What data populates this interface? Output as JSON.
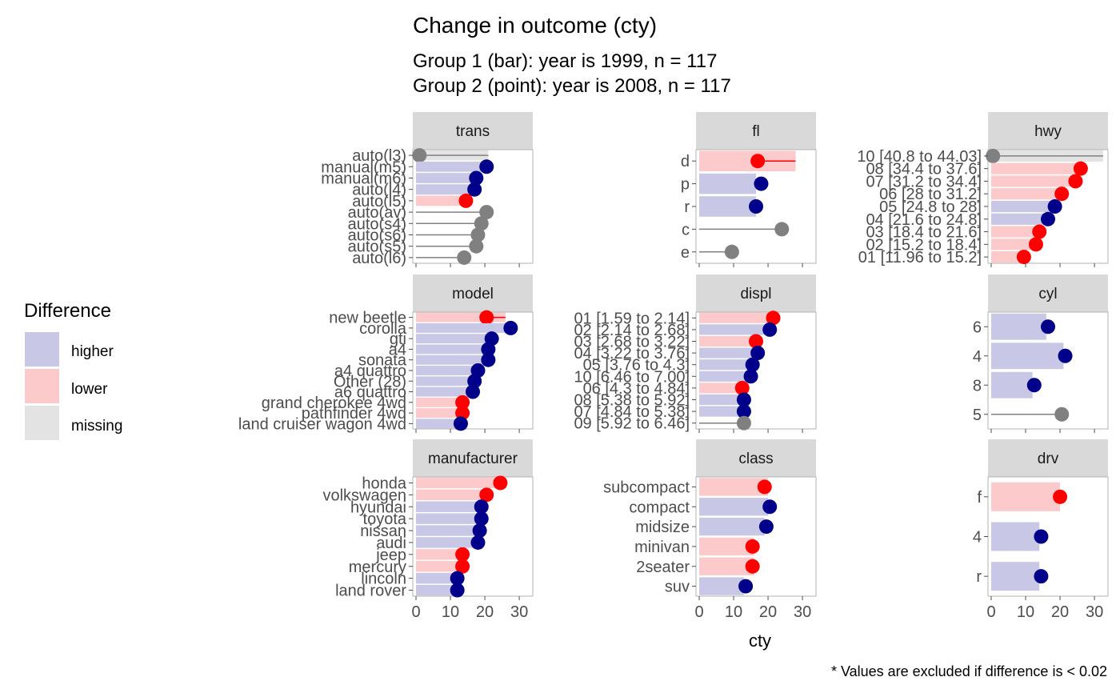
{
  "chart_data": {
    "type": "bar",
    "title": "Change in outcome (cty)",
    "subtitle_lines": [
      "Group 1 (bar): year is 1999, n = 117",
      "Group 2 (point): year is 2008, n = 117"
    ],
    "xlabel": "cty",
    "xlim": [
      0,
      33
    ],
    "xticks": [
      0,
      10,
      20,
      30
    ],
    "caption": "* Values are excluded if difference is < 0.02",
    "colors": {
      "higher": "#00008B",
      "lower": "#FF0000",
      "missing": "#808080",
      "bar_higher": "#c8c8e6",
      "bar_lower": "#fccacb",
      "bar_missing": "#e3e3e3"
    },
    "legend": {
      "title": "Difference",
      "entries": [
        {
          "key": "higher",
          "label": "higher"
        },
        {
          "key": "lower",
          "label": "lower"
        },
        {
          "key": "missing",
          "label": "missing"
        }
      ]
    },
    "panels": [
      {
        "name": "trans",
        "rows": [
          {
            "label": "auto(l3)",
            "bar": 21,
            "point": 1,
            "diff": "missing"
          },
          {
            "label": "manual(m5)",
            "bar": 19.5,
            "point": 20.5,
            "diff": "higher"
          },
          {
            "label": "manual(m6)",
            "bar": 16.5,
            "point": 17.5,
            "diff": "higher"
          },
          {
            "label": "auto(l4)",
            "bar": 16,
            "point": 17,
            "diff": "higher"
          },
          {
            "label": "auto(l5)",
            "bar": 15,
            "point": 14.5,
            "diff": "lower"
          },
          {
            "label": "auto(av)",
            "bar": 0,
            "point": 20.5,
            "diff": "missing"
          },
          {
            "label": "auto(s4)",
            "bar": 0,
            "point": 19,
            "diff": "missing"
          },
          {
            "label": "auto(s6)",
            "bar": 0,
            "point": 18,
            "diff": "missing"
          },
          {
            "label": "auto(s5)",
            "bar": 0,
            "point": 17.5,
            "diff": "missing"
          },
          {
            "label": "auto(l6)",
            "bar": 0,
            "point": 14,
            "diff": "missing"
          }
        ]
      },
      {
        "name": "fl",
        "rows": [
          {
            "label": "d",
            "bar": 28,
            "point": 17,
            "diff": "lower"
          },
          {
            "label": "p",
            "bar": 16.5,
            "point": 18,
            "diff": "higher"
          },
          {
            "label": "r",
            "bar": 16.5,
            "point": 16.5,
            "diff": "higher"
          },
          {
            "label": "c",
            "bar": 0,
            "point": 24,
            "diff": "missing"
          },
          {
            "label": "e",
            "bar": 0,
            "point": 9.5,
            "diff": "missing"
          }
        ]
      },
      {
        "name": "hwy",
        "rows": [
          {
            "label": "10 [40.8 to 44.03]",
            "bar": 32.5,
            "point": 0.5,
            "diff": "missing"
          },
          {
            "label": "08 [34.4 to 37.6]",
            "bar": 27,
            "point": 26,
            "diff": "lower"
          },
          {
            "label": "07 [31.2 to 34.4]",
            "bar": 25,
            "point": 24.5,
            "diff": "lower"
          },
          {
            "label": "06 [28 to 31.2]",
            "bar": 21,
            "point": 20.5,
            "diff": "lower"
          },
          {
            "label": "05 [24.8 to 28]",
            "bar": 18,
            "point": 18.5,
            "diff": "higher"
          },
          {
            "label": "04 [21.6 to 24.8]",
            "bar": 16.5,
            "point": 16.5,
            "diff": "higher"
          },
          {
            "label": "03 [18.4 to 21.6]",
            "bar": 14.5,
            "point": 14,
            "diff": "lower"
          },
          {
            "label": "02 [15.2 to 18.4]",
            "bar": 13,
            "point": 13,
            "diff": "lower"
          },
          {
            "label": "01 [11.96 to 15.2]",
            "bar": 10,
            "point": 9.5,
            "diff": "lower"
          }
        ]
      },
      {
        "name": "model",
        "rows": [
          {
            "label": "new beetle",
            "bar": 26,
            "point": 20.5,
            "diff": "lower"
          },
          {
            "label": "corolla",
            "bar": 26.5,
            "point": 27.5,
            "diff": "higher"
          },
          {
            "label": "gti",
            "bar": 21,
            "point": 22,
            "diff": "higher"
          },
          {
            "label": "a4",
            "bar": 20,
            "point": 21,
            "diff": "higher"
          },
          {
            "label": "sonata",
            "bar": 20,
            "point": 21,
            "diff": "higher"
          },
          {
            "label": "a4 quattro",
            "bar": 17,
            "point": 18,
            "diff": "higher"
          },
          {
            "label": "Other (28)",
            "bar": 16,
            "point": 17,
            "diff": "higher"
          },
          {
            "label": "a6 quattro",
            "bar": 15.5,
            "point": 16.5,
            "diff": "higher"
          },
          {
            "label": "grand cherokee 4wd",
            "bar": 14,
            "point": 13.5,
            "diff": "lower"
          },
          {
            "label": "pathfinder 4wd",
            "bar": 14,
            "point": 13.5,
            "diff": "lower"
          },
          {
            "label": "land cruiser wagon 4wd",
            "bar": 12,
            "point": 13,
            "diff": "higher"
          }
        ]
      },
      {
        "name": "displ",
        "rows": [
          {
            "label": "01 [1.59 to 2.14]",
            "bar": 22.5,
            "point": 21.5,
            "diff": "lower"
          },
          {
            "label": "02 [2.14 to 2.68]",
            "bar": 20,
            "point": 20.5,
            "diff": "higher"
          },
          {
            "label": "03 [2.68 to 3.22]",
            "bar": 17,
            "point": 16.5,
            "diff": "lower"
          },
          {
            "label": "04 [3.22 to 3.76]",
            "bar": 16.5,
            "point": 17,
            "diff": "higher"
          },
          {
            "label": "05 [3.76 to 4.3]",
            "bar": 15,
            "point": 15.5,
            "diff": "higher"
          },
          {
            "label": "10 [6.46 to 7.00]",
            "bar": 14.5,
            "point": 15,
            "diff": "higher"
          },
          {
            "label": "06 [4.3 to 4.84]",
            "bar": 13,
            "point": 12.5,
            "diff": "lower"
          },
          {
            "label": "08 [5.38 to 5.92]",
            "bar": 12.5,
            "point": 13,
            "diff": "higher"
          },
          {
            "label": "07 [4.84 to 5.38]",
            "bar": 12.5,
            "point": 13,
            "diff": "higher"
          },
          {
            "label": "09 [5.92 to 6.46]",
            "bar": 0,
            "point": 13,
            "diff": "missing"
          }
        ]
      },
      {
        "name": "cyl",
        "rows": [
          {
            "label": "6",
            "bar": 16,
            "point": 16.5,
            "diff": "higher"
          },
          {
            "label": "4",
            "bar": 21,
            "point": 21.5,
            "diff": "higher"
          },
          {
            "label": "8",
            "bar": 12,
            "point": 12.5,
            "diff": "higher"
          },
          {
            "label": "5",
            "bar": 0,
            "point": 20.5,
            "diff": "missing"
          }
        ]
      },
      {
        "name": "manufacturer",
        "rows": [
          {
            "label": "honda",
            "bar": 25,
            "point": 24.5,
            "diff": "lower"
          },
          {
            "label": "volkswagen",
            "bar": 21,
            "point": 20.5,
            "diff": "lower"
          },
          {
            "label": "hyundai",
            "bar": 18.5,
            "point": 19,
            "diff": "higher"
          },
          {
            "label": "toyota",
            "bar": 18.5,
            "point": 19,
            "diff": "higher"
          },
          {
            "label": "nissan",
            "bar": 18,
            "point": 18.5,
            "diff": "higher"
          },
          {
            "label": "audi",
            "bar": 17.5,
            "point": 18,
            "diff": "higher"
          },
          {
            "label": "jeep",
            "bar": 14,
            "point": 13.5,
            "diff": "lower"
          },
          {
            "label": "mercury",
            "bar": 14,
            "point": 13.5,
            "diff": "lower"
          },
          {
            "label": "lincoln",
            "bar": 11.5,
            "point": 12,
            "diff": "higher"
          },
          {
            "label": "land rover",
            "bar": 11.5,
            "point": 12,
            "diff": "higher"
          }
        ]
      },
      {
        "name": "class",
        "rows": [
          {
            "label": "subcompact",
            "bar": 20,
            "point": 19,
            "diff": "lower"
          },
          {
            "label": "compact",
            "bar": 20,
            "point": 20.5,
            "diff": "higher"
          },
          {
            "label": "midsize",
            "bar": 19,
            "point": 19.5,
            "diff": "higher"
          },
          {
            "label": "minivan",
            "bar": 16,
            "point": 15.5,
            "diff": "lower"
          },
          {
            "label": "2seater",
            "bar": 16,
            "point": 15.5,
            "diff": "lower"
          },
          {
            "label": "suv",
            "bar": 13,
            "point": 13.5,
            "diff": "higher"
          }
        ]
      },
      {
        "name": "drv",
        "rows": [
          {
            "label": "f",
            "bar": 20,
            "point": 20,
            "diff": "lower"
          },
          {
            "label": "4",
            "bar": 14,
            "point": 14.5,
            "diff": "higher"
          },
          {
            "label": "r",
            "bar": 14,
            "point": 14.5,
            "diff": "higher"
          }
        ]
      }
    ]
  }
}
